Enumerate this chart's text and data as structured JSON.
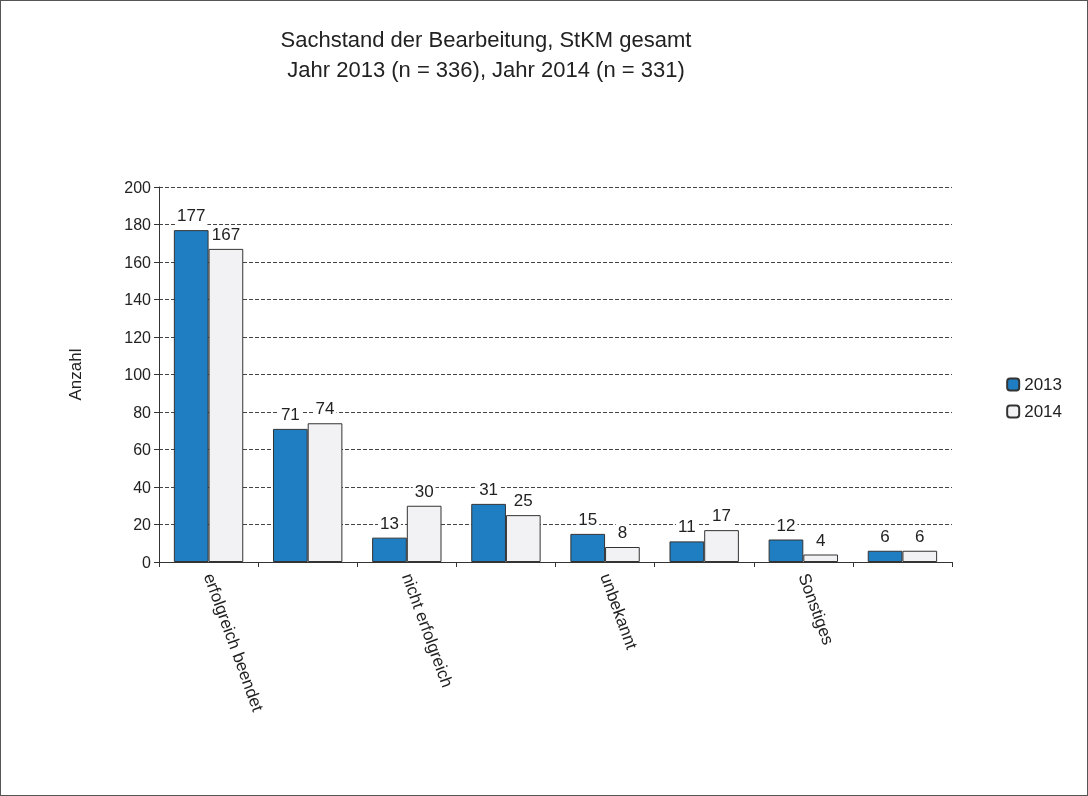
{
  "chart_data": {
    "type": "bar",
    "title": "Sachstand der Bearbeitung, StKM gesamt",
    "subtitle": "Jahr 2013 (n = 336), Jahr 2014 (n = 331)",
    "ylabel": "Anzahl",
    "categories": [
      "erfolgreich beendet",
      null,
      "nicht erfolgreich",
      null,
      "unbekannt",
      null,
      "Sonstiges",
      null
    ],
    "series": [
      {
        "name": "2013",
        "color": "#1f7ec2",
        "values": [
          177,
          71,
          13,
          31,
          15,
          11,
          12,
          6
        ]
      },
      {
        "name": "2014",
        "color": "#f2f2f4",
        "values": [
          167,
          74,
          30,
          25,
          8,
          17,
          4,
          6
        ]
      }
    ],
    "ylim": [
      0,
      200
    ],
    "yticks": [
      0,
      20,
      40,
      60,
      80,
      100,
      120,
      140,
      160,
      180,
      200
    ],
    "grid": "y",
    "legend": "right",
    "data_labels": true
  }
}
